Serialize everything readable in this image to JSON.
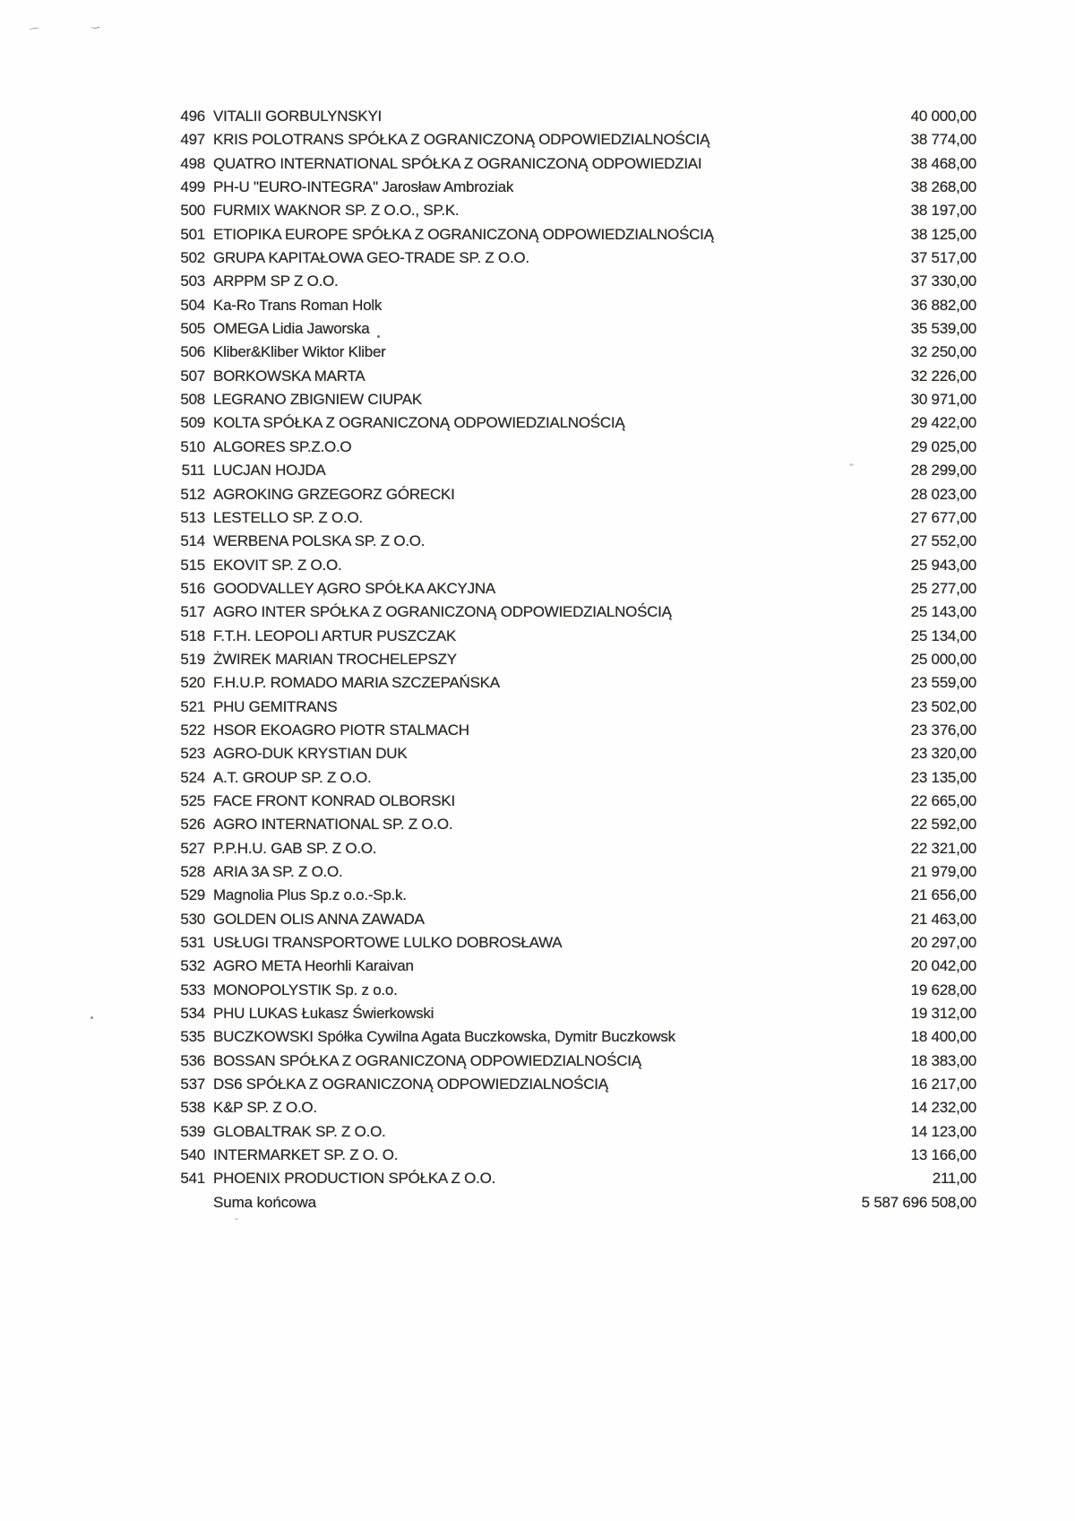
{
  "document": {
    "rows": [
      {
        "num": "496",
        "name": "VITALII GORBULYNSKYI",
        "amount": "40 000,00"
      },
      {
        "num": "497",
        "name": "KRIS POLOTRANS SPÓŁKA Z OGRANICZONĄ ODPOWIEDZIALNOŚCIĄ",
        "amount": "38 774,00"
      },
      {
        "num": "498",
        "name": "QUATRO INTERNATIONAL SPÓŁKA Z OGRANICZONĄ ODPOWIEDZIAI",
        "amount": "38 468,00"
      },
      {
        "num": "499",
        "name": "PH-U \"EURO-INTEGRA\" Jarosław Ambroziak",
        "amount": "38 268,00"
      },
      {
        "num": "500",
        "name": "FURMIX WAKNOR SP. Z O.O., SP.K.",
        "amount": "38 197,00"
      },
      {
        "num": "501",
        "name": "ETIOPIKA EUROPE SPÓŁKA Z OGRANICZONĄ ODPOWIEDZIALNOŚCIĄ",
        "amount": "38 125,00"
      },
      {
        "num": "502",
        "name": "GRUPA KAPITAŁOWA GEO-TRADE SP. Z O.O.",
        "amount": "37 517,00"
      },
      {
        "num": "503",
        "name": "ARPPM SP Z O.O.",
        "amount": "37 330,00"
      },
      {
        "num": "504",
        "name": "Ka-Ro Trans Roman Holk",
        "amount": "36 882,00"
      },
      {
        "num": "505",
        "name": "OMEGA Lidia Jaworska",
        "amount": "35 539,00"
      },
      {
        "num": "506",
        "name": "Kliber&Kliber Wiktor Kliber",
        "amount": "32 250,00"
      },
      {
        "num": "507",
        "name": "BORKOWSKA MARTA",
        "amount": "32 226,00"
      },
      {
        "num": "508",
        "name": "LEGRANO ZBIGNIEW CIUPAK",
        "amount": "30 971,00"
      },
      {
        "num": "509",
        "name": "KOLTA SPÓŁKA Z OGRANICZONĄ ODPOWIEDZIALNOŚCIĄ",
        "amount": "29 422,00"
      },
      {
        "num": "510",
        "name": "ALGORES SP.Z.O.O",
        "amount": "29 025,00"
      },
      {
        "num": "511",
        "name": "LUCJAN HOJDA",
        "amount": "28 299,00"
      },
      {
        "num": "512",
        "name": "AGROKING GRZEGORZ GÓRECKI",
        "amount": "28 023,00"
      },
      {
        "num": "513",
        "name": "LESTELLO SP. Z O.O.",
        "amount": "27 677,00"
      },
      {
        "num": "514",
        "name": "WERBENA POLSKA SP. Z O.O.",
        "amount": "27 552,00"
      },
      {
        "num": "515",
        "name": "EKOVIT SP. Z O.O.",
        "amount": "25 943,00"
      },
      {
        "num": "516",
        "name": "GOODVALLEY AGRO SPÓŁKA AKCYJNA",
        "amount": "25 277,00"
      },
      {
        "num": "517",
        "name": "AGRO INTER SPÓŁKA Z OGRANICZONĄ ODPOWIEDZIALNOŚCIĄ",
        "amount": "25 143,00"
      },
      {
        "num": "518",
        "name": "F.T.H. LEOPOLI ARTUR PUSZCZAK",
        "amount": "25 134,00"
      },
      {
        "num": "519",
        "name": "ŻWIREK MARIAN TROCHELEPSZY",
        "amount": "25 000,00"
      },
      {
        "num": "520",
        "name": "F.H.U.P. ROMADO MARIA SZCZEPAŃSKA",
        "amount": "23 559,00"
      },
      {
        "num": "521",
        "name": "PHU GEMITRANS",
        "amount": "23 502,00"
      },
      {
        "num": "522",
        "name": "HSOR EKOAGRO PIOTR STALMACH",
        "amount": "23 376,00"
      },
      {
        "num": "523",
        "name": "AGRO-DUK KRYSTIAN DUK",
        "amount": "23 320,00"
      },
      {
        "num": "524",
        "name": "A.T. GROUP SP. Z O.O.",
        "amount": "23 135,00"
      },
      {
        "num": "525",
        "name": "FACE FRONT KONRAD OLBORSKI",
        "amount": "22 665,00"
      },
      {
        "num": "526",
        "name": "AGRO INTERNATIONAL SP. Z O.O.",
        "amount": "22 592,00"
      },
      {
        "num": "527",
        "name": "P.P.H.U. GAB SP. Z O.O.",
        "amount": "22 321,00"
      },
      {
        "num": "528",
        "name": "ARIA 3A SP. Z O.O.",
        "amount": "21 979,00"
      },
      {
        "num": "529",
        "name": "Magnolia Plus Sp.z o.o.-Sp.k.",
        "amount": "21 656,00"
      },
      {
        "num": "530",
        "name": "GOLDEN OLIS ANNA ZAWADA",
        "amount": "21 463,00"
      },
      {
        "num": "531",
        "name": "USŁUGI TRANSPORTOWE LULKO DOBROSŁAWA",
        "amount": "20 297,00"
      },
      {
        "num": "532",
        "name": "AGRO META Heorhli Karaivan",
        "amount": "20 042,00"
      },
      {
        "num": "533",
        "name": "MONOPOLYSTIK Sp. z o.o.",
        "amount": "19 628,00"
      },
      {
        "num": "534",
        "name": "PHU LUKAS Łukasz Świerkowski",
        "amount": "19 312,00"
      },
      {
        "num": "535",
        "name": "BUCZKOWSKI Spółka Cywilna Agata Buczkowska, Dymitr Buczkowsk",
        "amount": "18 400,00"
      },
      {
        "num": "536",
        "name": "BOSSAN SPÓŁKA Z OGRANICZONĄ ODPOWIEDZIALNOŚCIĄ",
        "amount": "18 383,00"
      },
      {
        "num": "537",
        "name": "DS6 SPÓŁKA Z OGRANICZONĄ ODPOWIEDZIALNOŚCIĄ",
        "amount": "16 217,00"
      },
      {
        "num": "538",
        "name": "K&P SP. Z O.O.",
        "amount": "14 232,00"
      },
      {
        "num": "539",
        "name": "GLOBALTRAK SP. Z O.O.",
        "amount": "14 123,00"
      },
      {
        "num": "540",
        "name": "INTERMARKET SP. Z O. O.",
        "amount": "13 166,00"
      },
      {
        "num": "541",
        "name": "PHOENIX PRODUCTION SPÓŁKA Z O.O.",
        "amount": "211,00"
      }
    ],
    "summary": {
      "label": "Suma końcowa",
      "amount": "5 587 696 508,00"
    },
    "colors": {
      "text": "#2b2a28",
      "background": "#fefefe"
    }
  }
}
